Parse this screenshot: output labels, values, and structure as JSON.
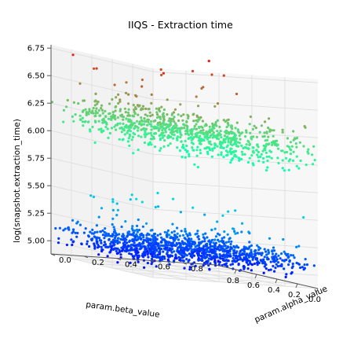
{
  "chart_data": {
    "type": "scatter",
    "projection": "3d",
    "title": "IIQS - Extraction time",
    "xlabel": "param.alpha_value",
    "ylabel": "param.beta_value",
    "zlabel": "log(snapshot.extraction_time)",
    "x_ticks": [
      "0.0",
      "0.2",
      "0.4",
      "0.6",
      "0.8"
    ],
    "y_ticks": [
      "0.0",
      "0.2",
      "0.4",
      "0.6",
      "0.8"
    ],
    "z_ticks": [
      "5.00",
      "5.25",
      "5.50",
      "5.75",
      "6.00",
      "6.25",
      "6.50",
      "6.75"
    ],
    "xlim": [
      0.0,
      1.0
    ],
    "ylim": [
      0.0,
      1.0
    ],
    "zlim": [
      4.88,
      6.78
    ],
    "colormap": "rainbow",
    "grid": true,
    "clusters": [
      {
        "z_center": 6.15,
        "z_spread": 0.17,
        "note_range": [
          5.9,
          6.75
        ],
        "approx_points": 900
      },
      {
        "z_center": 5.08,
        "z_spread": 0.06,
        "note_range": [
          4.9,
          5.55
        ],
        "approx_points": 1200
      }
    ]
  }
}
